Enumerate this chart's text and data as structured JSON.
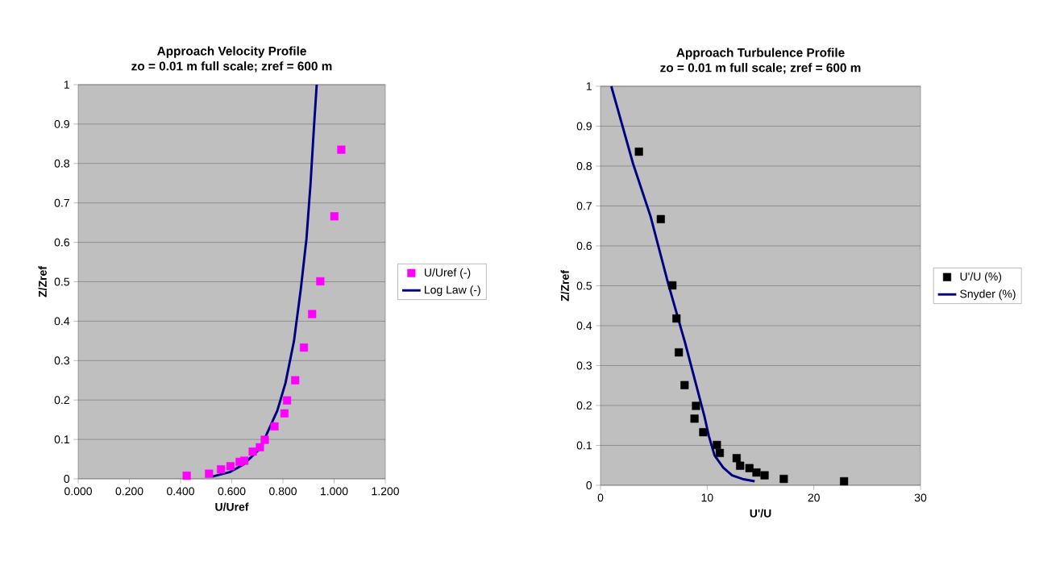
{
  "chart_data": [
    {
      "type": "scatter",
      "title": "Approach Velocity Profile",
      "subtitle": "zo = 0.01 m full scale; zref = 600 m",
      "xlabel": "U/Uref",
      "ylabel": "Z/Zref",
      "xlim": [
        0,
        1.2
      ],
      "xticks": [
        {
          "value": 0,
          "label": "0.000"
        },
        {
          "value": 0.2,
          "label": "0.200"
        },
        {
          "value": 0.4,
          "label": "0.400"
        },
        {
          "value": 0.6,
          "label": "0.600"
        },
        {
          "value": 0.8,
          "label": "0.800"
        },
        {
          "value": 1.0,
          "label": "1.000"
        },
        {
          "value": 1.2,
          "label": "1.200"
        }
      ],
      "ylim": [
        0,
        1
      ],
      "yticks": [
        0,
        0.1,
        0.2,
        0.3,
        0.4,
        0.5,
        0.6,
        0.7,
        0.8,
        0.9,
        1
      ],
      "grid": "y",
      "legend": "right",
      "series": [
        {
          "name": "U/Uref (-)",
          "marker": "square",
          "color": "#ff00ff",
          "x": [
            0.424,
            0.511,
            0.558,
            0.595,
            0.631,
            0.649,
            0.682,
            0.71,
            0.729,
            0.767,
            0.806,
            0.816,
            0.848,
            0.882,
            0.914,
            0.946,
            1.001,
            1.028
          ],
          "values": [
            0.008,
            0.013,
            0.024,
            0.032,
            0.043,
            0.046,
            0.069,
            0.08,
            0.099,
            0.133,
            0.166,
            0.199,
            0.25,
            0.333,
            0.418,
            0.501,
            0.666,
            0.835
          ]
        },
        {
          "name": "Log Law (-)",
          "type": "line",
          "marker": "none",
          "line_style": "solid",
          "color": "#000080",
          "x": [
            0.525,
            0.592,
            0.647,
            0.712,
            0.778,
            0.81,
            0.843,
            0.87,
            0.892,
            0.908,
            0.921,
            0.932
          ],
          "values": [
            0.006,
            0.017,
            0.037,
            0.078,
            0.173,
            0.243,
            0.349,
            0.482,
            0.609,
            0.75,
            0.89,
            1.0
          ]
        }
      ]
    },
    {
      "type": "scatter",
      "title": "Approach Turbulence Profile",
      "subtitle": "zo = 0.01 m full scale; zref = 600 m",
      "xlabel": "U'/U",
      "ylabel": "Z/Zref",
      "xlim": [
        0,
        30
      ],
      "xticks": [
        0,
        10,
        20,
        30
      ],
      "ylim": [
        0,
        1
      ],
      "yticks": [
        0,
        0.1,
        0.2,
        0.3,
        0.4,
        0.5,
        0.6,
        0.7,
        0.8,
        0.9,
        1
      ],
      "grid": "y",
      "legend": "right",
      "series": [
        {
          "name": "U'/U (%)",
          "marker": "square",
          "color": "#000000",
          "x": [
            22.83,
            17.18,
            15.38,
            14.62,
            13.96,
            13.09,
            12.76,
            11.18,
            10.91,
            9.63,
            8.81,
            8.95,
            7.88,
            7.34,
            7.12,
            6.74,
            5.65,
            3.6
          ],
          "values": [
            0.01,
            0.016,
            0.025,
            0.032,
            0.043,
            0.049,
            0.068,
            0.081,
            0.101,
            0.133,
            0.167,
            0.199,
            0.251,
            0.333,
            0.418,
            0.501,
            0.667,
            0.836
          ]
        },
        {
          "name": "Snyder (%)",
          "type": "line",
          "marker": "none",
          "line_style": "solid",
          "color": "#000080",
          "x": [
            1.01,
            3.05,
            4.69,
            6.33,
            7.96,
            9.74,
            10.15,
            10.69,
            11.51,
            12.33,
            13.42,
            14.45
          ],
          "values": [
            1.0,
            0.806,
            0.674,
            0.507,
            0.354,
            0.173,
            0.124,
            0.075,
            0.044,
            0.025,
            0.015,
            0.01
          ]
        }
      ]
    }
  ]
}
